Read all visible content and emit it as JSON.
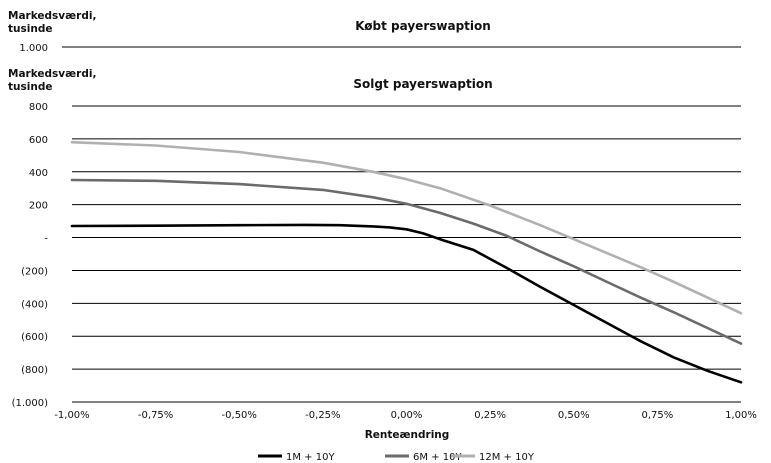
{
  "chart_data": {
    "type": "line",
    "background_chart": {
      "title": "Købt payerswaption",
      "ylabel": [
        "Markedsværdi,",
        "tusinde"
      ],
      "top_tick_label": "1.000"
    },
    "title": "Solgt payerswaption",
    "ylabel": [
      "Markedsværdi,",
      "tusinde"
    ],
    "xlabel": "Renteændring",
    "xlim": [
      -1.0,
      1.0
    ],
    "ylim": [
      -1000,
      800
    ],
    "x_ticks": [
      -1.0,
      -0.75,
      -0.5,
      -0.25,
      0.0,
      0.25,
      0.5,
      0.75,
      1.0
    ],
    "x_tick_labels": [
      "-1,00%",
      "-0,75%",
      "-0,50%",
      "-0,25%",
      "0,00%",
      "0,25%",
      "0,50%",
      "0,75%",
      "1,00%"
    ],
    "y_ticks": [
      800,
      600,
      400,
      200,
      0,
      -200,
      -400,
      -600,
      -800,
      -1000
    ],
    "y_tick_labels": [
      "800",
      "600",
      "400",
      "200",
      "-",
      "(200)",
      "(400)",
      "(600)",
      "(800)",
      "(1.000)"
    ],
    "grid": "horizontal",
    "legend_position": "bottom",
    "series": [
      {
        "name": "1M + 10Y",
        "color": "#000000",
        "points": [
          [
            -1.0,
            70
          ],
          [
            -0.75,
            72
          ],
          [
            -0.5,
            75
          ],
          [
            -0.3,
            77
          ],
          [
            -0.2,
            75
          ],
          [
            -0.1,
            68
          ],
          [
            -0.05,
            62
          ],
          [
            0.0,
            50
          ],
          [
            0.05,
            25
          ],
          [
            0.1,
            -10
          ],
          [
            0.2,
            -75
          ],
          [
            0.3,
            -185
          ],
          [
            0.4,
            -300
          ],
          [
            0.5,
            -410
          ],
          [
            0.6,
            -520
          ],
          [
            0.7,
            -630
          ],
          [
            0.8,
            -730
          ],
          [
            0.9,
            -810
          ],
          [
            1.0,
            -880
          ]
        ]
      },
      {
        "name": "6M + 10Y",
        "color": "#6b6b6b",
        "points": [
          [
            -1.0,
            350
          ],
          [
            -0.75,
            345
          ],
          [
            -0.5,
            325
          ],
          [
            -0.25,
            290
          ],
          [
            -0.1,
            245
          ],
          [
            0.0,
            205
          ],
          [
            0.1,
            150
          ],
          [
            0.2,
            85
          ],
          [
            0.3,
            10
          ],
          [
            0.4,
            -85
          ],
          [
            0.5,
            -175
          ],
          [
            0.6,
            -270
          ],
          [
            0.7,
            -365
          ],
          [
            0.8,
            -455
          ],
          [
            0.9,
            -550
          ],
          [
            1.0,
            -645
          ]
        ]
      },
      {
        "name": "12M + 10Y",
        "color": "#b0b0b0",
        "points": [
          [
            -1.0,
            580
          ],
          [
            -0.75,
            560
          ],
          [
            -0.5,
            520
          ],
          [
            -0.25,
            455
          ],
          [
            -0.1,
            400
          ],
          [
            0.0,
            355
          ],
          [
            0.1,
            300
          ],
          [
            0.25,
            195
          ],
          [
            0.4,
            75
          ],
          [
            0.5,
            -10
          ],
          [
            0.6,
            -95
          ],
          [
            0.7,
            -180
          ],
          [
            0.8,
            -270
          ],
          [
            0.9,
            -365
          ],
          [
            1.0,
            -460
          ]
        ]
      }
    ]
  }
}
